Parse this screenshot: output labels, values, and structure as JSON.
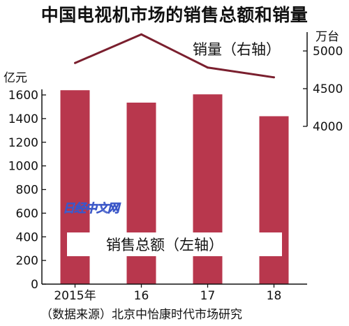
{
  "title": "中国电视机市场的销售总额和销量",
  "source": "（数据来源）北京中怡康时代市场研究",
  "watermark": "日经中文网",
  "chart_data": {
    "type": "bar+line",
    "categories": [
      "2015年",
      "16",
      "17",
      "18"
    ],
    "series": [
      {
        "name": "销售总额（左轴）",
        "type": "bar",
        "axis": "left",
        "unit": "亿元",
        "values": [
          1640,
          1535,
          1605,
          1420
        ],
        "color": "#b8374d"
      },
      {
        "name": "销量（右轴）",
        "type": "line",
        "axis": "right",
        "unit": "万台",
        "values": [
          4840,
          5220,
          4780,
          4650
        ],
        "color": "#7a1f2e"
      }
    ],
    "left_axis": {
      "unit": "亿元",
      "min": 0,
      "max": 1600,
      "ticks": [
        0,
        200,
        400,
        600,
        800,
        1000,
        1200,
        1400,
        1600
      ]
    },
    "right_axis": {
      "unit": "万台",
      "min": 4000,
      "max": 5000,
      "ticks": [
        4000,
        4500,
        5000
      ]
    },
    "grid": false,
    "legend": "inline labels"
  }
}
